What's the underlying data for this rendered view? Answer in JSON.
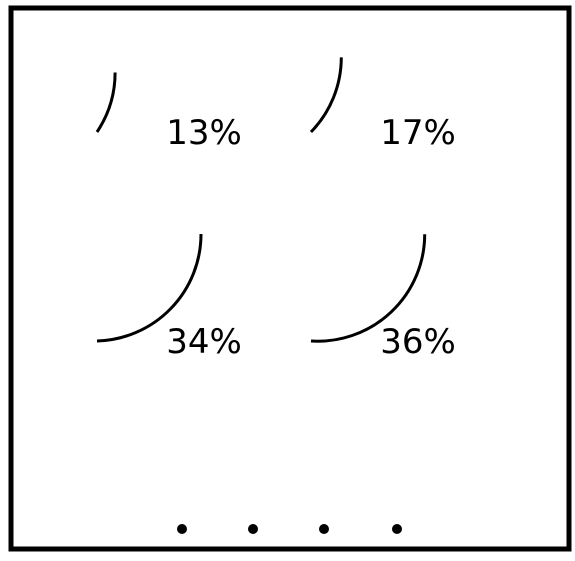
{
  "colors": {
    "frame": "#000000",
    "arc": "#000000",
    "dot": "#000000",
    "background": "#ffffff"
  },
  "gauges": [
    {
      "label": "13%",
      "value": 0.13
    },
    {
      "label": "17%",
      "value": 0.17
    },
    {
      "label": "34%",
      "value": 0.34
    },
    {
      "label": "36%",
      "value": 0.36
    }
  ],
  "pager": {
    "dot_count": 4
  }
}
